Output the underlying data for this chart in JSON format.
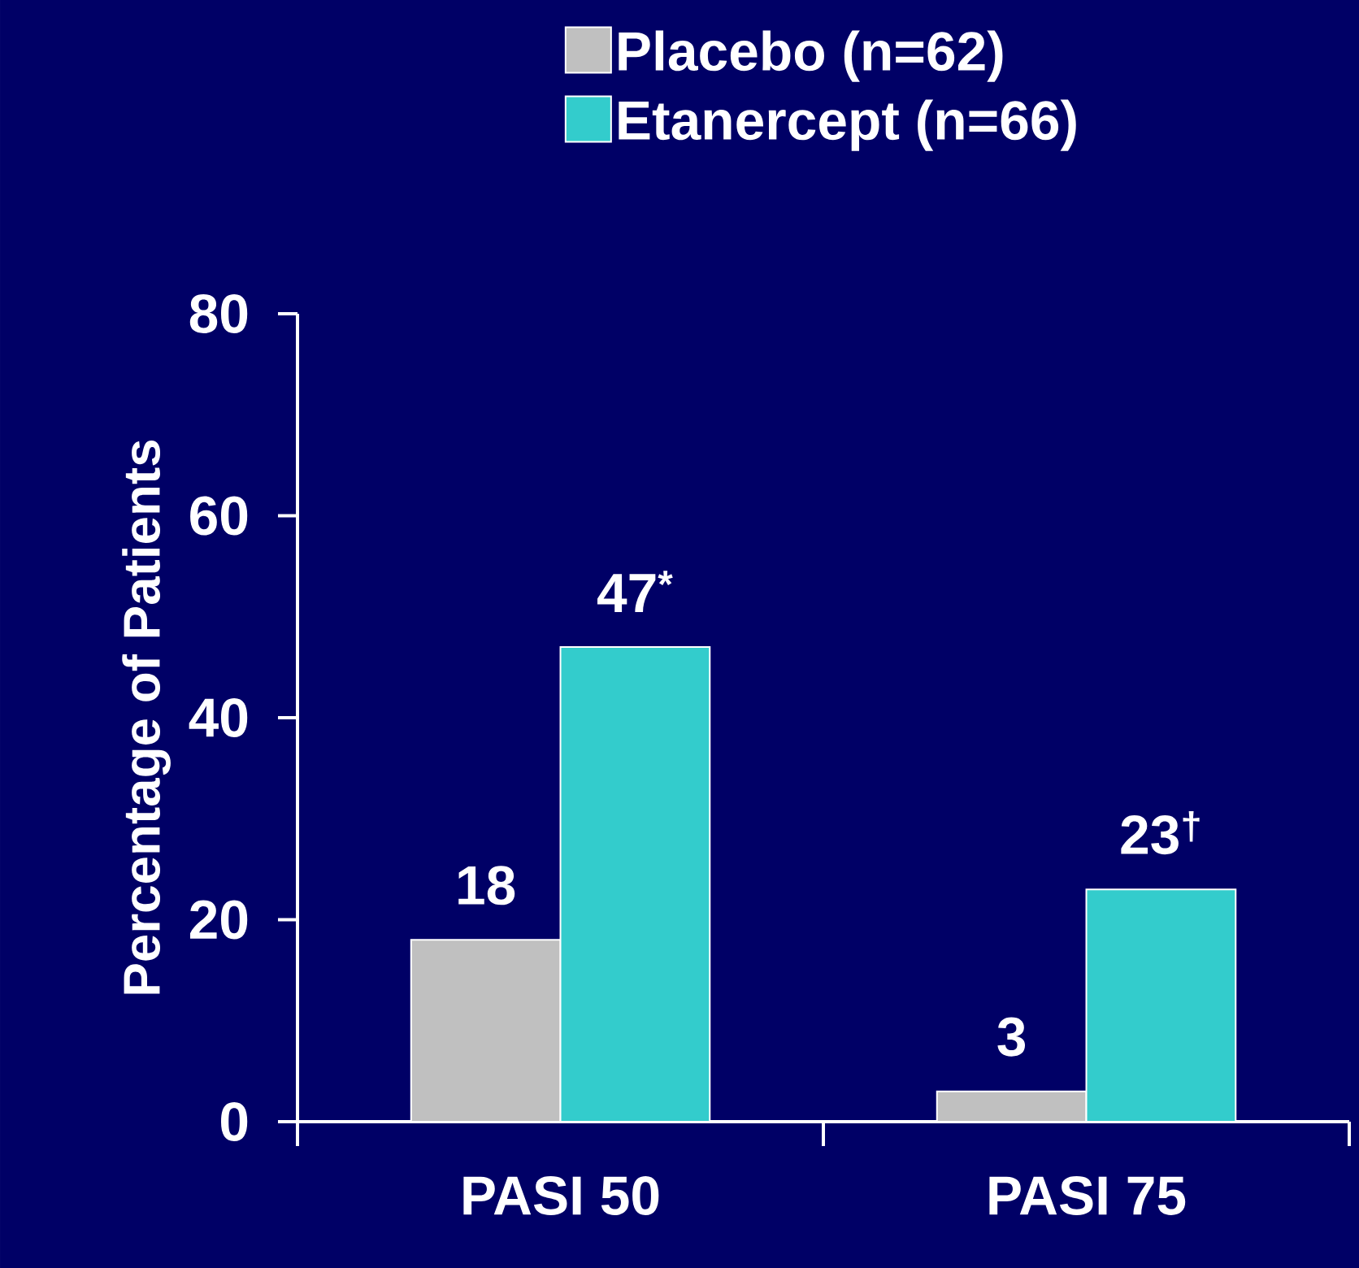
{
  "chart_data": {
    "type": "bar",
    "categories": [
      "PASI 50",
      "PASI 75"
    ],
    "ylabel": "Percentage of Patients",
    "ylim": [
      0,
      80
    ],
    "yticks": [
      0,
      20,
      40,
      60,
      80
    ],
    "legend": "top",
    "grid": false,
    "series": [
      {
        "name": "Placebo (n=62)",
        "color": "#c0c0c0",
        "values": [
          18,
          3
        ],
        "value_labels": [
          "18",
          "3"
        ]
      },
      {
        "name": "Etanercept (n=66)",
        "color": "#33cccc",
        "values": [
          47,
          23
        ],
        "value_labels": [
          "47$^{*}$",
          "23$^{†}$"
        ]
      }
    ]
  }
}
